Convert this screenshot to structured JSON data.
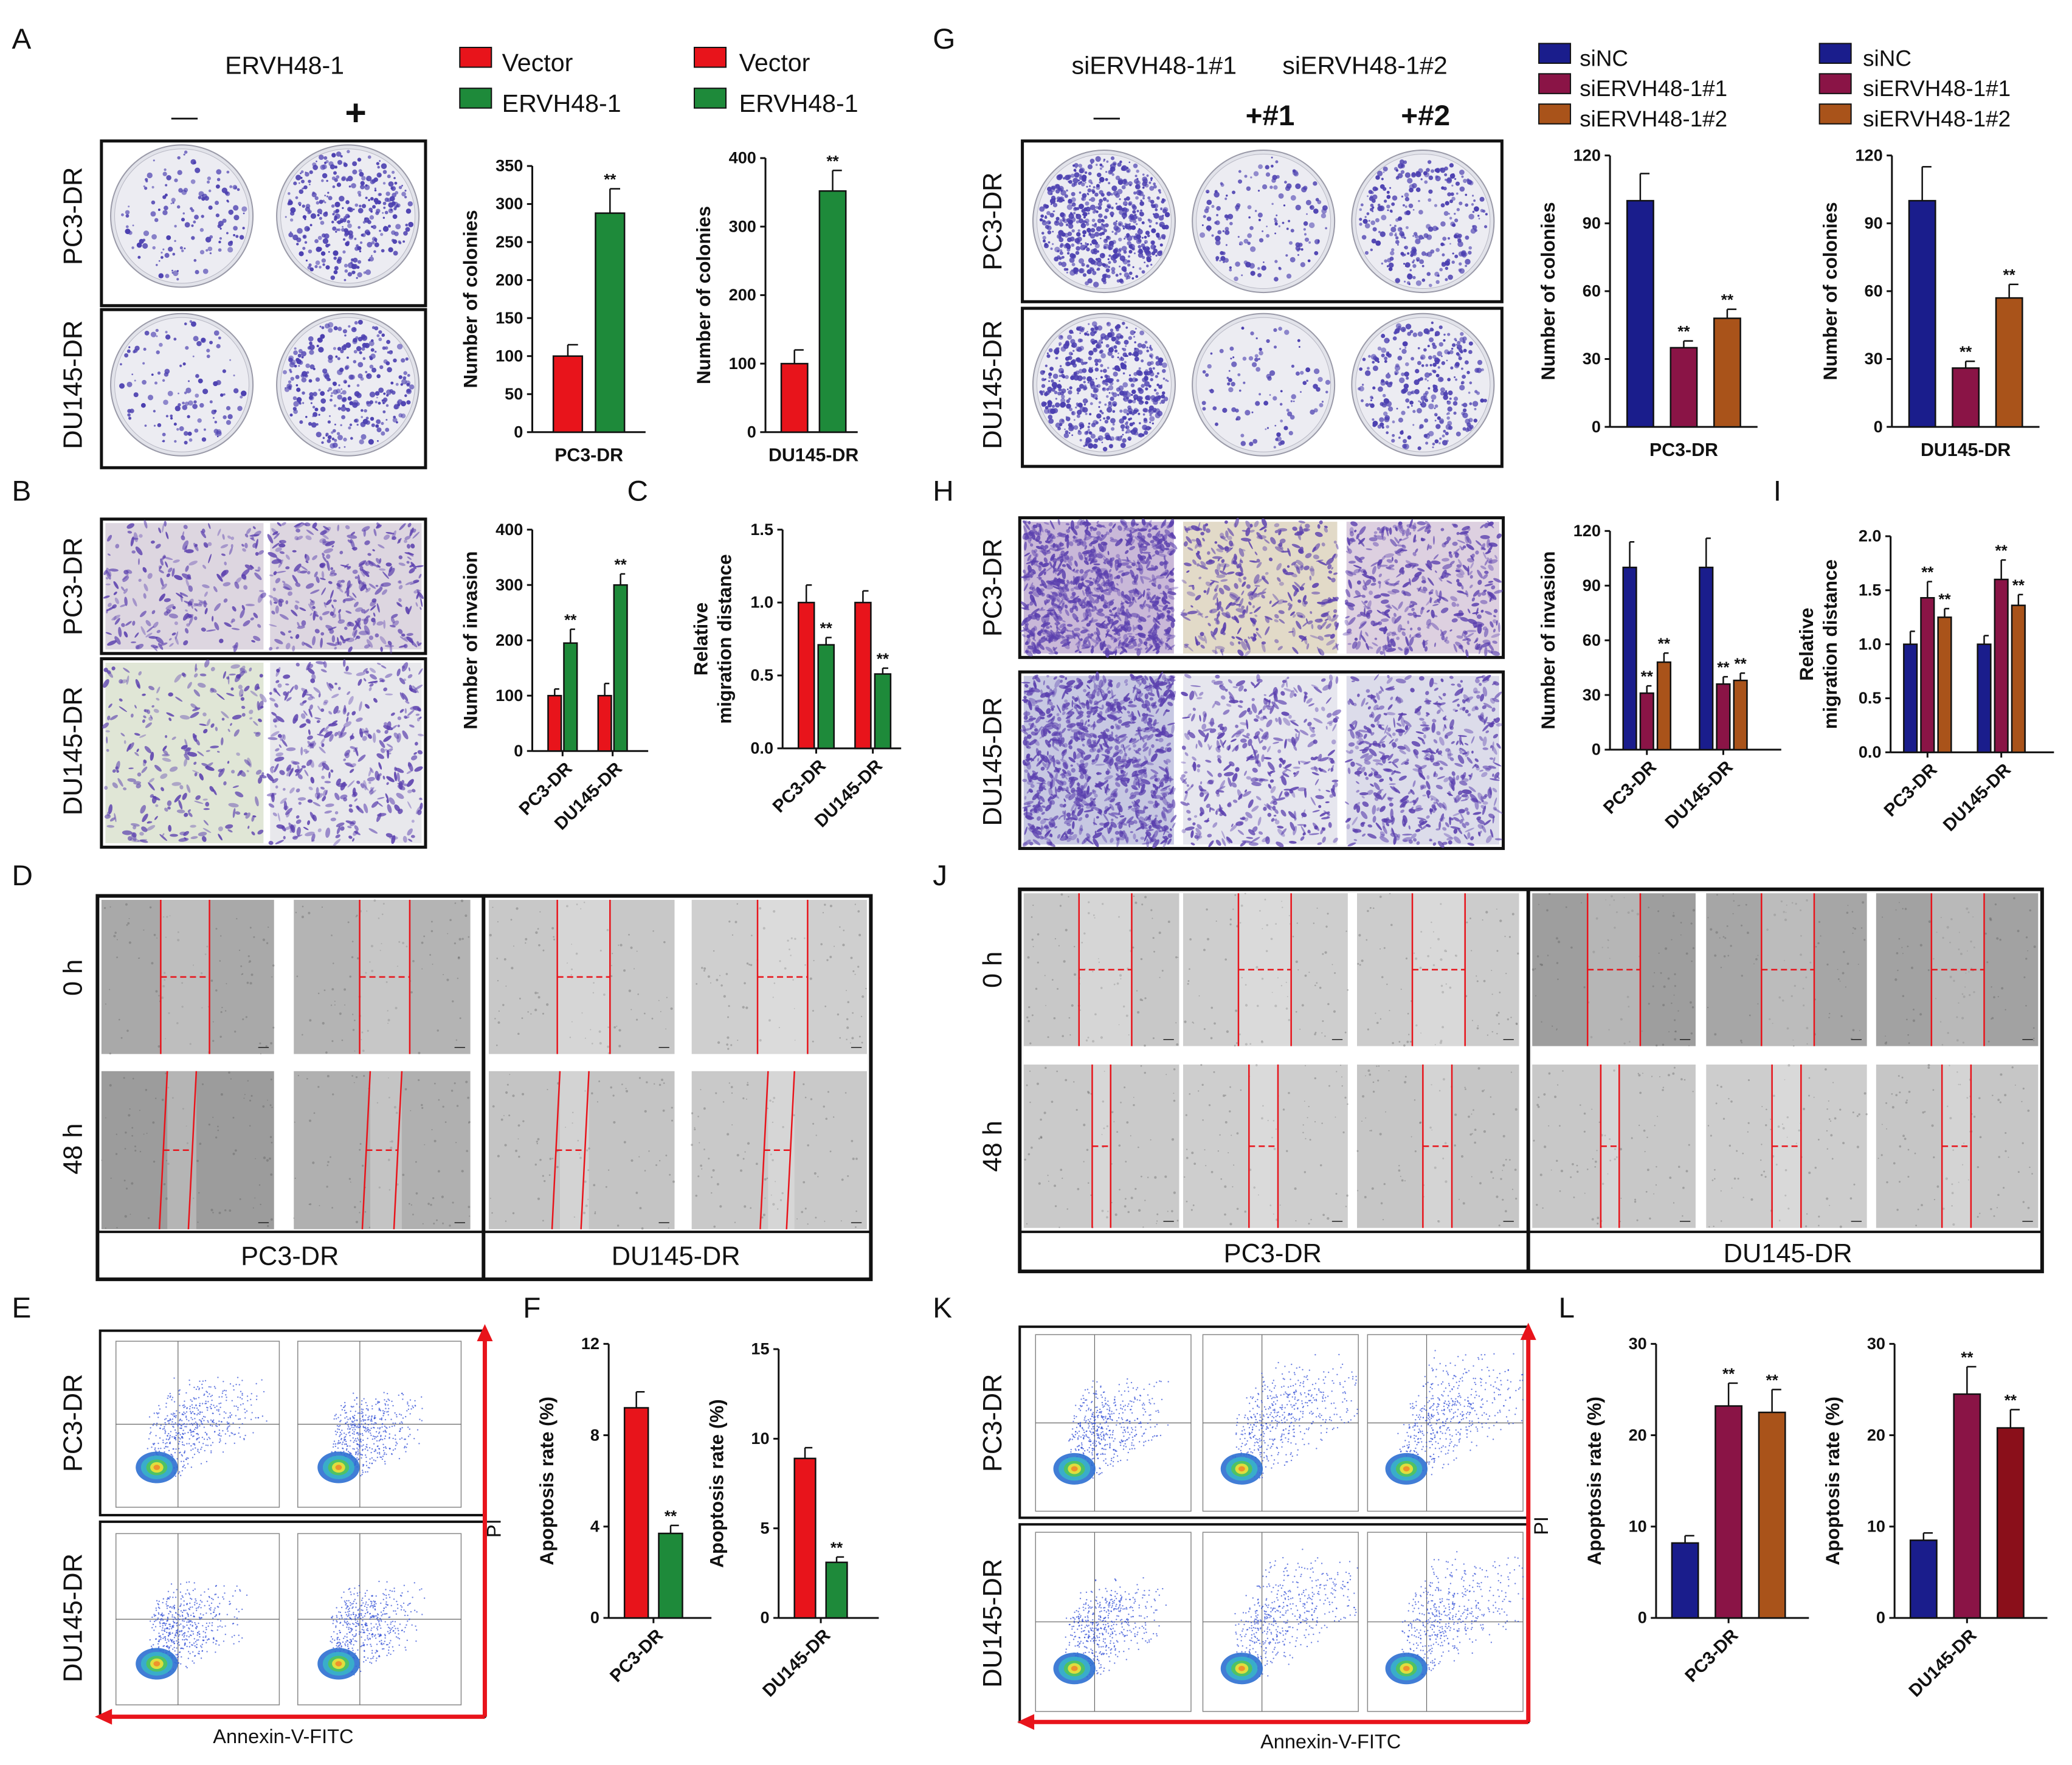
{
  "panel_letters": [
    "A",
    "B",
    "C",
    "D",
    "E",
    "F",
    "G",
    "H",
    "I",
    "J",
    "K",
    "L"
  ],
  "colors": {
    "vector_red": "#e8141b",
    "ervh_green": "#1e8a3a",
    "sinc_navy": "#1a1d8c",
    "si1_maroon": "#8a1446",
    "si2_brown": "#a9531a",
    "si2_darkred": "#8a0f1a",
    "scratch_line": "#e8141b",
    "crystal_violet": "#4b3fb0"
  },
  "icons": [
    "petri-dish-image",
    "transwell-stain-image",
    "wound-scratch-image",
    "flow-cytometry-scatter-image",
    "red-axis-arrow-icon"
  ],
  "panelA": {
    "treatment_label": "ERVH48-1",
    "col_signs": [
      "—",
      "+"
    ],
    "row_labels": [
      "PC3-DR",
      "DU145-DR"
    ],
    "legend": [
      "Vector",
      "ERVH48-1"
    ]
  },
  "panelG": {
    "treatment_labels": [
      "siERVH48-1#1",
      "siERVH48-1#2"
    ],
    "col_signs": [
      "—",
      "+#1",
      "+#2"
    ],
    "row_labels": [
      "PC3-DR",
      "DU145-DR"
    ],
    "legend": [
      "siNC",
      "siERVH48-1#1",
      "siERVH48-1#2"
    ]
  },
  "panelB": {
    "row_labels": [
      "PC3-DR",
      "DU145-DR"
    ]
  },
  "panelH": {
    "row_labels": [
      "PC3-DR",
      "DU145-DR"
    ]
  },
  "panelD": {
    "time_labels": [
      "0 h",
      "48 h"
    ],
    "group_labels": [
      "PC3-DR",
      "DU145-DR"
    ]
  },
  "panelJ": {
    "time_labels": [
      "0 h",
      "48 h"
    ],
    "group_labels": [
      "PC3-DR",
      "DU145-DR"
    ]
  },
  "panelE": {
    "row_labels": [
      "PC3-DR",
      "DU145-DR"
    ],
    "x_axis": "Annexin-V-FITC",
    "y_axis": "PI"
  },
  "panelK": {
    "row_labels": [
      "PC3-DR",
      "DU145-DR"
    ],
    "x_axis": "Annexin-V-FITC",
    "y_axis": "PI"
  },
  "significance_mark": "**",
  "chart_data": [
    {
      "id": "A1",
      "type": "bar",
      "title": "",
      "ylabel": "Number of colonies",
      "xlabel": "PC3-DR",
      "ylim": [
        0,
        350
      ],
      "yticks": [
        0,
        50,
        100,
        150,
        200,
        250,
        300,
        350
      ],
      "categories": [
        "PC3-DR"
      ],
      "series": [
        {
          "name": "Vector",
          "color": "#e8141b",
          "values": [
            100
          ],
          "err": [
            15
          ],
          "sig": [
            ""
          ]
        },
        {
          "name": "ERVH48-1",
          "color": "#1e8a3a",
          "values": [
            288
          ],
          "err": [
            32
          ],
          "sig": [
            "**"
          ]
        }
      ]
    },
    {
      "id": "A2",
      "type": "bar",
      "title": "",
      "ylabel": "Number of colonies",
      "xlabel": "DU145-DR",
      "ylim": [
        0,
        400
      ],
      "yticks": [
        0,
        100,
        200,
        300,
        400
      ],
      "categories": [
        "DU145-DR"
      ],
      "series": [
        {
          "name": "Vector",
          "color": "#e8141b",
          "values": [
            100
          ],
          "err": [
            20
          ],
          "sig": [
            ""
          ]
        },
        {
          "name": "ERVH48-1",
          "color": "#1e8a3a",
          "values": [
            352
          ],
          "err": [
            30
          ],
          "sig": [
            "**"
          ]
        }
      ]
    },
    {
      "id": "B",
      "type": "bar",
      "title": "",
      "ylabel": "Number of invasion",
      "xlabel": "",
      "ylim": [
        0,
        400
      ],
      "yticks": [
        0,
        100,
        200,
        300,
        400
      ],
      "categories": [
        "PC3-DR",
        "DU145-DR"
      ],
      "series": [
        {
          "name": "Vector",
          "color": "#e8141b",
          "values": [
            100,
            100
          ],
          "err": [
            12,
            22
          ],
          "sig": [
            "",
            ""
          ]
        },
        {
          "name": "ERVH48-1",
          "color": "#1e8a3a",
          "values": [
            195,
            300
          ],
          "err": [
            25,
            20
          ],
          "sig": [
            "**",
            "**"
          ]
        }
      ]
    },
    {
      "id": "C",
      "type": "bar",
      "title": "",
      "ylabel": "Relative migration distance",
      "xlabel": "",
      "ylim": [
        0,
        1.5
      ],
      "yticks": [
        0.0,
        0.5,
        1.0,
        1.5
      ],
      "categories": [
        "PC3-DR",
        "DU145-DR"
      ],
      "series": [
        {
          "name": "Vector",
          "color": "#e8141b",
          "values": [
            1.0,
            1.0
          ],
          "err": [
            0.12,
            0.08
          ],
          "sig": [
            "",
            ""
          ]
        },
        {
          "name": "ERVH48-1",
          "color": "#1e8a3a",
          "values": [
            0.71,
            0.51
          ],
          "err": [
            0.05,
            0.04
          ],
          "sig": [
            "**",
            "**"
          ]
        }
      ]
    },
    {
      "id": "F1",
      "type": "bar",
      "title": "",
      "ylabel": "Apoptosis rate (%)",
      "xlabel": "",
      "ylim": [
        0,
        12
      ],
      "yticks": [
        0,
        4,
        8,
        12
      ],
      "categories": [
        "PC3-DR"
      ],
      "series": [
        {
          "name": "Vector",
          "color": "#e8141b",
          "values": [
            9.2
          ],
          "err": [
            0.7
          ],
          "sig": [
            ""
          ]
        },
        {
          "name": "ERVH48-1",
          "color": "#1e8a3a",
          "values": [
            3.7
          ],
          "err": [
            0.35
          ],
          "sig": [
            "**"
          ]
        }
      ]
    },
    {
      "id": "F2",
      "type": "bar",
      "title": "",
      "ylabel": "Apoptosis rate (%)",
      "xlabel": "",
      "ylim": [
        0,
        15
      ],
      "yticks": [
        0,
        5,
        10,
        15
      ],
      "categories": [
        "DU145-DR"
      ],
      "series": [
        {
          "name": "Vector",
          "color": "#e8141b",
          "values": [
            8.9
          ],
          "err": [
            0.6
          ],
          "sig": [
            ""
          ]
        },
        {
          "name": "ERVH48-1",
          "color": "#1e8a3a",
          "values": [
            3.1
          ],
          "err": [
            0.3
          ],
          "sig": [
            "**"
          ]
        }
      ]
    },
    {
      "id": "G1",
      "type": "bar",
      "title": "",
      "ylabel": "Number of colonies",
      "xlabel": "PC3-DR",
      "ylim": [
        0,
        120
      ],
      "yticks": [
        0,
        30,
        60,
        90,
        120
      ],
      "categories": [
        "PC3-DR"
      ],
      "series": [
        {
          "name": "siNC",
          "color": "#1a1d8c",
          "values": [
            100
          ],
          "err": [
            12
          ],
          "sig": [
            ""
          ]
        },
        {
          "name": "siERVH48-1#1",
          "color": "#8a1446",
          "values": [
            35
          ],
          "err": [
            3
          ],
          "sig": [
            "**"
          ]
        },
        {
          "name": "siERVH48-1#2",
          "color": "#a9531a",
          "values": [
            48
          ],
          "err": [
            4
          ],
          "sig": [
            "**"
          ]
        }
      ]
    },
    {
      "id": "G2",
      "type": "bar",
      "title": "",
      "ylabel": "Number of colonies",
      "xlabel": "DU145-DR",
      "ylim": [
        0,
        120
      ],
      "yticks": [
        0,
        30,
        60,
        90,
        120
      ],
      "categories": [
        "DU145-DR"
      ],
      "series": [
        {
          "name": "siNC",
          "color": "#1a1d8c",
          "values": [
            100
          ],
          "err": [
            15
          ],
          "sig": [
            ""
          ]
        },
        {
          "name": "siERVH48-1#1",
          "color": "#8a1446",
          "values": [
            26
          ],
          "err": [
            3
          ],
          "sig": [
            "**"
          ]
        },
        {
          "name": "siERVH48-1#2",
          "color": "#a9531a",
          "values": [
            57
          ],
          "err": [
            6
          ],
          "sig": [
            "**"
          ]
        }
      ]
    },
    {
      "id": "H",
      "type": "bar",
      "title": "",
      "ylabel": "Number of invasion",
      "xlabel": "",
      "ylim": [
        0,
        120
      ],
      "yticks": [
        0,
        30,
        60,
        90,
        120
      ],
      "categories": [
        "PC3-DR",
        "DU145-DR"
      ],
      "series": [
        {
          "name": "siNC",
          "color": "#1a1d8c",
          "values": [
            100,
            100
          ],
          "err": [
            14,
            16
          ],
          "sig": [
            "",
            ""
          ]
        },
        {
          "name": "siERVH48-1#1",
          "color": "#8a1446",
          "values": [
            31,
            36
          ],
          "err": [
            4,
            4
          ],
          "sig": [
            "**",
            "**"
          ]
        },
        {
          "name": "siERVH48-1#2",
          "color": "#a9531a",
          "values": [
            48,
            38
          ],
          "err": [
            5,
            4
          ],
          "sig": [
            "**",
            "**"
          ]
        }
      ]
    },
    {
      "id": "I",
      "type": "bar",
      "title": "",
      "ylabel": "Relative migration distance",
      "xlabel": "",
      "ylim": [
        0,
        2.0
      ],
      "yticks": [
        0.0,
        0.5,
        1.0,
        1.5,
        2.0
      ],
      "categories": [
        "PC3-DR",
        "DU145-DR"
      ],
      "series": [
        {
          "name": "siNC",
          "color": "#1a1d8c",
          "values": [
            1.0,
            1.0
          ],
          "err": [
            0.12,
            0.08
          ],
          "sig": [
            "",
            ""
          ]
        },
        {
          "name": "siERVH48-1#1",
          "color": "#8a1446",
          "values": [
            1.43,
            1.6
          ],
          "err": [
            0.15,
            0.18
          ],
          "sig": [
            "**",
            "**"
          ]
        },
        {
          "name": "siERVH48-1#2",
          "color": "#a9531a",
          "values": [
            1.25,
            1.36
          ],
          "err": [
            0.08,
            0.1
          ],
          "sig": [
            "**",
            "**"
          ]
        }
      ]
    },
    {
      "id": "L1",
      "type": "bar",
      "title": "",
      "ylabel": "Apoptosis rate (%)",
      "xlabel": "",
      "ylim": [
        0,
        30
      ],
      "yticks": [
        0,
        10,
        20,
        30
      ],
      "categories": [
        "PC3-DR"
      ],
      "series": [
        {
          "name": "siNC",
          "color": "#1a1d8c",
          "values": [
            8.2
          ],
          "err": [
            0.8
          ],
          "sig": [
            ""
          ]
        },
        {
          "name": "siERVH48-1#1",
          "color": "#8a1446",
          "values": [
            23.2
          ],
          "err": [
            2.5
          ],
          "sig": [
            "**"
          ]
        },
        {
          "name": "siERVH48-1#2",
          "color": "#a9531a",
          "values": [
            22.5
          ],
          "err": [
            2.5
          ],
          "sig": [
            "**"
          ]
        }
      ]
    },
    {
      "id": "L2",
      "type": "bar",
      "title": "",
      "ylabel": "Apoptosis rate (%)",
      "xlabel": "",
      "ylim": [
        0,
        30
      ],
      "yticks": [
        0,
        10,
        20,
        30
      ],
      "categories": [
        "DU145-DR"
      ],
      "series": [
        {
          "name": "siNC",
          "color": "#1a1d8c",
          "values": [
            8.5
          ],
          "err": [
            0.8
          ],
          "sig": [
            ""
          ]
        },
        {
          "name": "siERVH48-1#1",
          "color": "#8a1446",
          "values": [
            24.5
          ],
          "err": [
            3
          ],
          "sig": [
            "**"
          ]
        },
        {
          "name": "siERVH48-1#2",
          "color": "#8a0f1a",
          "values": [
            20.8
          ],
          "err": [
            2
          ],
          "sig": [
            "**"
          ]
        }
      ]
    }
  ]
}
